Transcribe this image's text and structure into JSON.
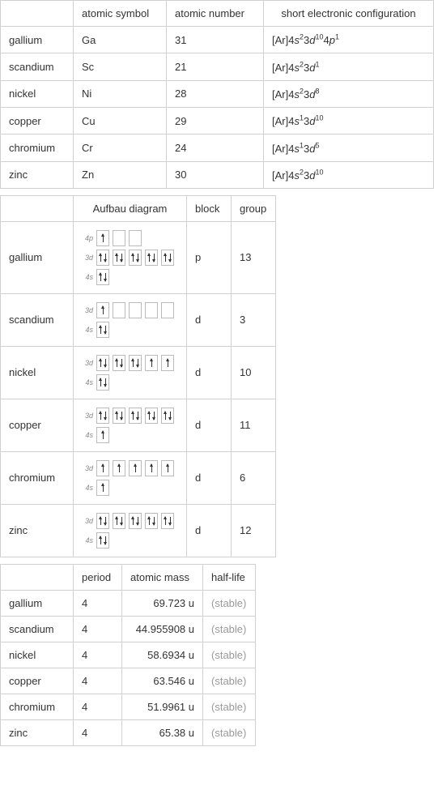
{
  "table1": {
    "headers": [
      "atomic symbol",
      "atomic number",
      "short electronic configuration"
    ],
    "widths": [
      90,
      115,
      120,
      210
    ],
    "rows": [
      {
        "name": "gallium",
        "symbol": "Ga",
        "number": "31",
        "config": [
          [
            "[Ar]4"
          ],
          [
            "s",
            "2"
          ],
          [
            "3"
          ],
          [
            "d",
            "10"
          ],
          [
            "4"
          ],
          [
            "p",
            "1"
          ]
        ]
      },
      {
        "name": "scandium",
        "symbol": "Sc",
        "number": "21",
        "config": [
          [
            "[Ar]4"
          ],
          [
            "s",
            "2"
          ],
          [
            "3"
          ],
          [
            "d",
            "1"
          ]
        ]
      },
      {
        "name": "nickel",
        "symbol": "Ni",
        "number": "28",
        "config": [
          [
            "[Ar]4"
          ],
          [
            "s",
            "2"
          ],
          [
            "3"
          ],
          [
            "d",
            "8"
          ]
        ]
      },
      {
        "name": "copper",
        "symbol": "Cu",
        "number": "29",
        "config": [
          [
            "[Ar]4"
          ],
          [
            "s",
            "1"
          ],
          [
            "3"
          ],
          [
            "d",
            "10"
          ]
        ]
      },
      {
        "name": "chromium",
        "symbol": "Cr",
        "number": "24",
        "config": [
          [
            "[Ar]4"
          ],
          [
            "s",
            "1"
          ],
          [
            "3"
          ],
          [
            "d",
            "5"
          ]
        ]
      },
      {
        "name": "zinc",
        "symbol": "Zn",
        "number": "30",
        "config": [
          [
            "[Ar]4"
          ],
          [
            "s",
            "2"
          ],
          [
            "3"
          ],
          [
            "d",
            "10"
          ]
        ]
      }
    ]
  },
  "table2": {
    "headers": [
      "Aufbau diagram",
      "block",
      "group"
    ],
    "widths": [
      90,
      140,
      55,
      55
    ],
    "rows": [
      {
        "name": "gallium",
        "block": "p",
        "group": "13",
        "orbitals": [
          {
            "label": "4p",
            "boxes": [
              [
                1,
                0
              ],
              [
                0,
                0
              ],
              [
                0,
                0
              ]
            ]
          },
          {
            "label": "3d",
            "boxes": [
              [
                1,
                1
              ],
              [
                1,
                1
              ],
              [
                1,
                1
              ],
              [
                1,
                1
              ],
              [
                1,
                1
              ]
            ]
          },
          {
            "label": "4s",
            "boxes": [
              [
                1,
                1
              ]
            ]
          }
        ]
      },
      {
        "name": "scandium",
        "block": "d",
        "group": "3",
        "orbitals": [
          {
            "label": "3d",
            "boxes": [
              [
                1,
                0
              ],
              [
                0,
                0
              ],
              [
                0,
                0
              ],
              [
                0,
                0
              ],
              [
                0,
                0
              ]
            ]
          },
          {
            "label": "4s",
            "boxes": [
              [
                1,
                1
              ]
            ]
          }
        ]
      },
      {
        "name": "nickel",
        "block": "d",
        "group": "10",
        "orbitals": [
          {
            "label": "3d",
            "boxes": [
              [
                1,
                1
              ],
              [
                1,
                1
              ],
              [
                1,
                1
              ],
              [
                1,
                0
              ],
              [
                1,
                0
              ]
            ]
          },
          {
            "label": "4s",
            "boxes": [
              [
                1,
                1
              ]
            ]
          }
        ]
      },
      {
        "name": "copper",
        "block": "d",
        "group": "11",
        "orbitals": [
          {
            "label": "3d",
            "boxes": [
              [
                1,
                1
              ],
              [
                1,
                1
              ],
              [
                1,
                1
              ],
              [
                1,
                1
              ],
              [
                1,
                1
              ]
            ]
          },
          {
            "label": "4s",
            "boxes": [
              [
                1,
                0
              ]
            ]
          }
        ]
      },
      {
        "name": "chromium",
        "block": "d",
        "group": "6",
        "orbitals": [
          {
            "label": "3d",
            "boxes": [
              [
                1,
                0
              ],
              [
                1,
                0
              ],
              [
                1,
                0
              ],
              [
                1,
                0
              ],
              [
                1,
                0
              ]
            ]
          },
          {
            "label": "4s",
            "boxes": [
              [
                1,
                0
              ]
            ]
          }
        ]
      },
      {
        "name": "zinc",
        "block": "d",
        "group": "12",
        "orbitals": [
          {
            "label": "3d",
            "boxes": [
              [
                1,
                1
              ],
              [
                1,
                1
              ],
              [
                1,
                1
              ],
              [
                1,
                1
              ],
              [
                1,
                1
              ]
            ]
          },
          {
            "label": "4s",
            "boxes": [
              [
                1,
                1
              ]
            ]
          }
        ]
      }
    ]
  },
  "table3": {
    "headers": [
      "period",
      "atomic mass",
      "half-life"
    ],
    "widths": [
      90,
      60,
      100,
      65
    ],
    "rows": [
      {
        "name": "gallium",
        "period": "4",
        "mass": "69.723 u",
        "halflife": "(stable)"
      },
      {
        "name": "scandium",
        "period": "4",
        "mass": "44.955908 u",
        "halflife": "(stable)"
      },
      {
        "name": "nickel",
        "period": "4",
        "mass": "58.6934 u",
        "halflife": "(stable)"
      },
      {
        "name": "copper",
        "period": "4",
        "mass": "63.546 u",
        "halflife": "(stable)"
      },
      {
        "name": "chromium",
        "period": "4",
        "mass": "51.9961 u",
        "halflife": "(stable)"
      },
      {
        "name": "zinc",
        "period": "4",
        "mass": "65.38 u",
        "halflife": "(stable)"
      }
    ]
  }
}
